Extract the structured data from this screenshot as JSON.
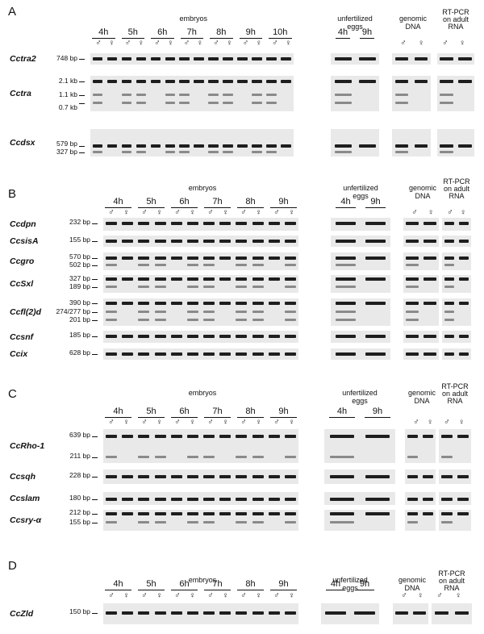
{
  "panels": {
    "A": {
      "letter": "A",
      "embryo_header": "embryos",
      "timepoints": [
        "4h",
        "5h",
        "6h",
        "7h",
        "8h",
        "9h",
        "10h"
      ],
      "unfert_header": [
        "unfertilized",
        "eggs"
      ],
      "unfert_timepoints": [
        "4h",
        "9h"
      ],
      "genomic_header": [
        "genomic",
        "DNA"
      ],
      "rtpcr_header": [
        "RT-PCR",
        "on adult",
        "RNA"
      ],
      "genes": [
        {
          "name": "Cctra2",
          "sizes": [
            "748 bp"
          ]
        },
        {
          "name": "Cctra",
          "sizes": [
            "2.1 kb",
            "1.1 kb",
            "0.7 kb"
          ]
        },
        {
          "name": "Ccdsx",
          "sizes": [
            "579 bp",
            "327 bp"
          ]
        }
      ]
    },
    "B": {
      "letter": "B",
      "embryo_header": "embryos",
      "timepoints": [
        "4h",
        "5h",
        "6h",
        "7h",
        "8h",
        "9h"
      ],
      "unfert_header": [
        "unfertilized",
        "eggs"
      ],
      "unfert_timepoints": [
        "4h",
        "9h"
      ],
      "genomic_header": [
        "genomic",
        "DNA"
      ],
      "rtpcr_header": [
        "RT-PCR",
        "on adult",
        "RNA"
      ],
      "genes": [
        {
          "name": "Ccdpn",
          "sizes": [
            "232 bp"
          ]
        },
        {
          "name": "CcsisA",
          "sizes": [
            "155 bp"
          ]
        },
        {
          "name": "Ccgro",
          "sizes": [
            "570 bp",
            "502 bp"
          ]
        },
        {
          "name": "CcSxl",
          "sizes": [
            "327 bp",
            "189 bp"
          ]
        },
        {
          "name": "Ccfl(2)d",
          "sizes": [
            "390 bp",
            "274/277 bp",
            "201 bp"
          ]
        },
        {
          "name": "Ccsnf",
          "sizes": [
            "185 bp"
          ]
        },
        {
          "name": "Ccix",
          "sizes": [
            "628 bp"
          ]
        }
      ]
    },
    "C": {
      "letter": "C",
      "embryo_header": "embryos",
      "timepoints": [
        "4h",
        "5h",
        "6h",
        "7h",
        "8h",
        "9h"
      ],
      "unfert_header": [
        "unfertilized",
        "eggs"
      ],
      "unfert_timepoints": [
        "4h",
        "9h"
      ],
      "genomic_header": [
        "genomic",
        "DNA"
      ],
      "rtpcr_header": [
        "RT-PCR",
        "on adult",
        "RNA"
      ],
      "genes": [
        {
          "name": "CcRho-1",
          "sizes": [
            "639 bp",
            "211 bp"
          ]
        },
        {
          "name": "Ccsqh",
          "sizes": [
            "228 bp"
          ]
        },
        {
          "name": "Ccslam",
          "sizes": [
            "180 bp"
          ]
        },
        {
          "name": "Ccsry-α",
          "sizes": [
            "212 bp",
            "155 bp"
          ]
        }
      ]
    },
    "D": {
      "letter": "D",
      "embryo_header": "embryos",
      "timepoints": [
        "4h",
        "5h",
        "6h",
        "7h",
        "8h",
        "9h"
      ],
      "unfert_header": [
        "unfertilized",
        "eggs"
      ],
      "unfert_timepoints": [
        "4h",
        "9h"
      ],
      "genomic_header": [
        "genomic",
        "DNA"
      ],
      "rtpcr_header": [
        "RT-PCR",
        "on adult",
        "RNA"
      ],
      "genes": [
        {
          "name": "CcZld",
          "sizes": [
            "150 bp"
          ]
        }
      ]
    }
  },
  "sex_symbols": {
    "male": "♂",
    "female": "♀"
  }
}
